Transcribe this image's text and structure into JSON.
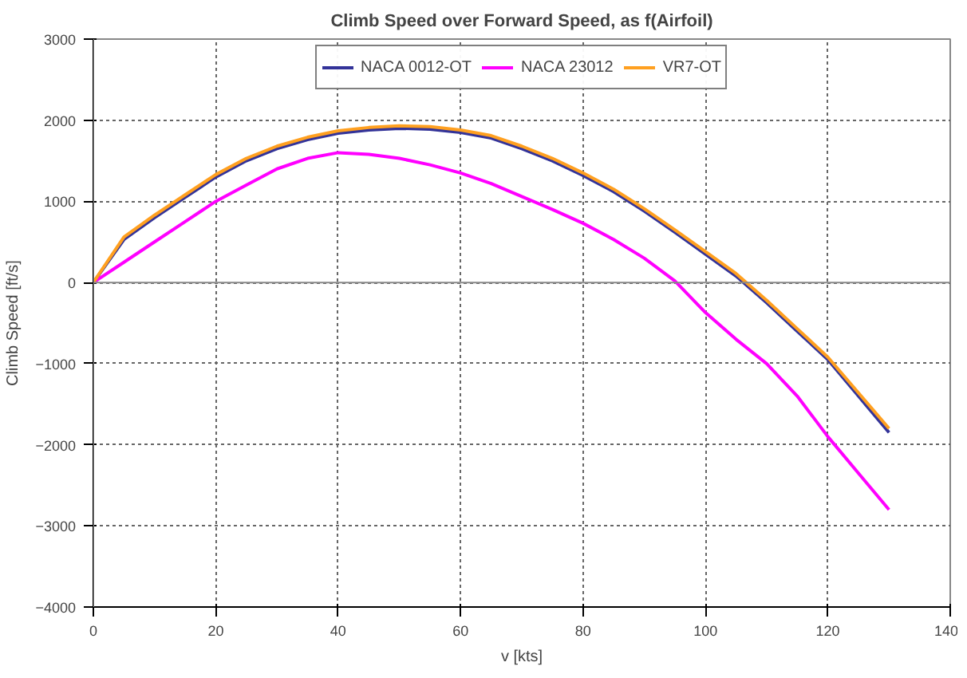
{
  "chart_data": {
    "type": "line",
    "title": "Climb Speed over Forward Speed, as f(Airfoil)",
    "xlabel": "v [kts]",
    "ylabel": "Climb Speed [ft/s]",
    "x": [
      0,
      5,
      10,
      15,
      20,
      25,
      30,
      35,
      40,
      45,
      50,
      55,
      60,
      65,
      70,
      75,
      80,
      85,
      90,
      95,
      100,
      105,
      110,
      115,
      120,
      125,
      130
    ],
    "series": [
      {
        "name": "NACA 0012-OT",
        "color": "#333399",
        "values": [
          0,
          530,
          800,
          1050,
          1300,
          1500,
          1650,
          1760,
          1840,
          1880,
          1900,
          1890,
          1850,
          1780,
          1650,
          1500,
          1320,
          1120,
          880,
          620,
          350,
          80,
          -250,
          -600,
          -950,
          -1400,
          -1850
        ]
      },
      {
        "name": "NACA 23012",
        "color": "#ff00ff",
        "values": [
          0,
          250,
          500,
          750,
          1000,
          1200,
          1400,
          1530,
          1600,
          1580,
          1530,
          1450,
          1350,
          1220,
          1060,
          900,
          730,
          530,
          300,
          20,
          -370,
          -700,
          -1000,
          -1400,
          -1900,
          -2350,
          -2800
        ]
      },
      {
        "name": "VR7-OT",
        "color": "#ffa020",
        "values": [
          0,
          560,
          830,
          1080,
          1330,
          1530,
          1680,
          1790,
          1870,
          1910,
          1930,
          1920,
          1880,
          1810,
          1680,
          1530,
          1350,
          1150,
          910,
          650,
          380,
          110,
          -220,
          -570,
          -920,
          -1360,
          -1800
        ]
      }
    ],
    "xlim": [
      0,
      140
    ],
    "xticks": [
      0,
      20,
      40,
      60,
      80,
      100,
      120,
      140
    ],
    "ylim": [
      -4000,
      3000
    ],
    "yticks": [
      -4000,
      -3000,
      -2000,
      -1000,
      0,
      1000,
      2000,
      3000
    ],
    "grid": true,
    "legend": "top",
    "line_style": "solid"
  }
}
